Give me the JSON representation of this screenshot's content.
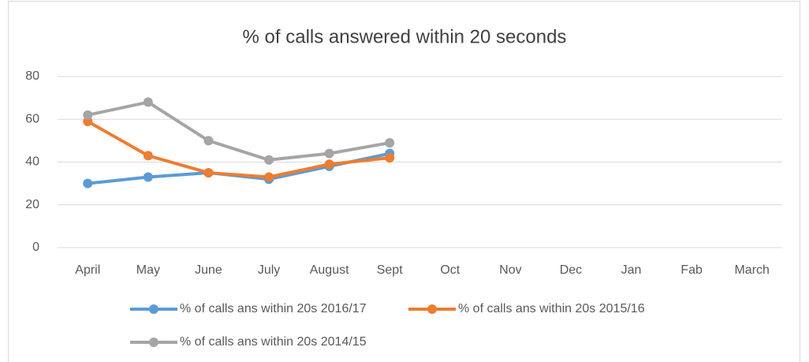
{
  "chart_data": {
    "type": "line",
    "title": "% of calls answered within 20 seconds",
    "categories": [
      "April",
      "May",
      "June",
      "July",
      "August",
      "Sept",
      "Oct",
      "Nov",
      "Dec",
      "Jan",
      "Fab",
      "March"
    ],
    "series": [
      {
        "name": "% of calls ans within 20s 2016/17",
        "color": "#5b9bd5",
        "values": [
          30,
          33,
          35,
          32,
          38,
          44,
          null,
          null,
          null,
          null,
          null,
          null
        ]
      },
      {
        "name": "% of calls ans within 20s 2015/16",
        "color": "#ed7d31",
        "values": [
          59,
          43,
          35,
          33,
          39,
          42,
          null,
          null,
          null,
          null,
          null,
          null
        ]
      },
      {
        "name": "% of calls ans within 20s 2014/15",
        "color": "#a5a5a5",
        "values": [
          62,
          68,
          50,
          41,
          44,
          49,
          null,
          null,
          null,
          null,
          null,
          null
        ]
      }
    ],
    "ylim": [
      0,
      80
    ],
    "yticks": [
      0,
      20,
      40,
      60,
      80
    ],
    "grid": true,
    "legend": "bottom"
  }
}
